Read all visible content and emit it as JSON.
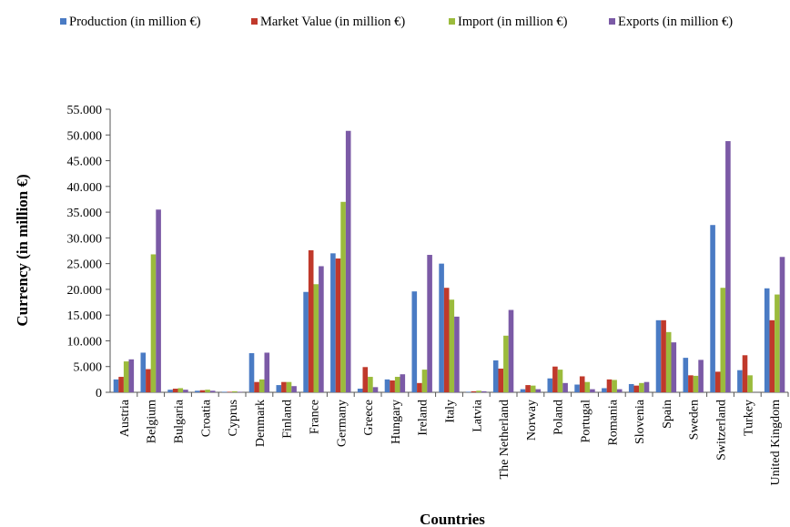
{
  "chart_data": {
    "type": "bar",
    "xlabel": "Countries",
    "ylabel": "Currency (in million €)",
    "ylim": [
      0,
      55000
    ],
    "yticks": [
      0,
      5000,
      10000,
      15000,
      20000,
      25000,
      30000,
      35000,
      40000,
      45000,
      50000,
      55000
    ],
    "ytick_labels": [
      "0",
      "5.000",
      "10.000",
      "15.000",
      "20.000",
      "25.000",
      "30.000",
      "35.000",
      "40.000",
      "45.000",
      "50.000",
      "55.000"
    ],
    "legend_position": "top",
    "grid": false,
    "categories": [
      "Austria",
      "Belgium",
      "Bulgaria",
      "Croatia",
      "Cyprus",
      "Denmark",
      "Finland",
      "France",
      "Germany",
      "Greece",
      "Hungary",
      "Ireland",
      "Italy",
      "Latvia",
      "The Netherland",
      "Norway",
      "Poland",
      "Portugal",
      "Romania",
      "Slovenia",
      "Spain",
      "Sweden",
      "Switzerland",
      "Turkey",
      "United Kingdom"
    ],
    "series": [
      {
        "name": "Production (in million €)",
        "color": "#4a7bc4",
        "values": [
          2500,
          7700,
          500,
          300,
          100,
          7600,
          1400,
          19500,
          27000,
          700,
          2500,
          19600,
          25000,
          100,
          6200,
          600,
          2700,
          1500,
          800,
          1600,
          14000,
          6700,
          32500,
          4300,
          20200
        ]
      },
      {
        "name": "Market Value (in million €)",
        "color": "#c0392b",
        "values": [
          3000,
          4500,
          700,
          400,
          100,
          2000,
          2000,
          27600,
          26000,
          4900,
          2300,
          1800,
          20300,
          200,
          4600,
          1400,
          5000,
          3100,
          2500,
          1300,
          14000,
          3300,
          4000,
          7200,
          14000
        ]
      },
      {
        "name": "Import (in million €)",
        "color": "#9bbb3c",
        "values": [
          6000,
          26800,
          800,
          500,
          200,
          2500,
          2000,
          21000,
          37000,
          3000,
          3000,
          4400,
          18000,
          300,
          11000,
          1300,
          4400,
          2000,
          2400,
          1800,
          11700,
          3200,
          20300,
          3300,
          19000
        ]
      },
      {
        "name": "Exports (in million €)",
        "color": "#7b5aa6",
        "values": [
          6400,
          35500,
          500,
          300,
          100,
          7700,
          1200,
          24500,
          50800,
          1000,
          3500,
          26700,
          14700,
          200,
          16000,
          600,
          1800,
          600,
          600,
          2000,
          9700,
          6300,
          48800,
          0,
          26300
        ]
      }
    ]
  }
}
